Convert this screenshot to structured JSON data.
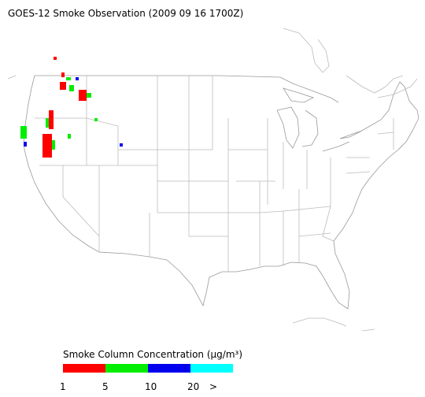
{
  "title": "GOES-12 Smoke Observation (2009 09 16  1700Z)",
  "legend": {
    "title": "Smoke Column Concentration (μg/m³)",
    "colors": [
      "#ff0000",
      "#00ee00",
      "#0000ee",
      "#00ffff"
    ],
    "labels": [
      "1",
      "5",
      "10",
      "20",
      ">"
    ]
  }
}
